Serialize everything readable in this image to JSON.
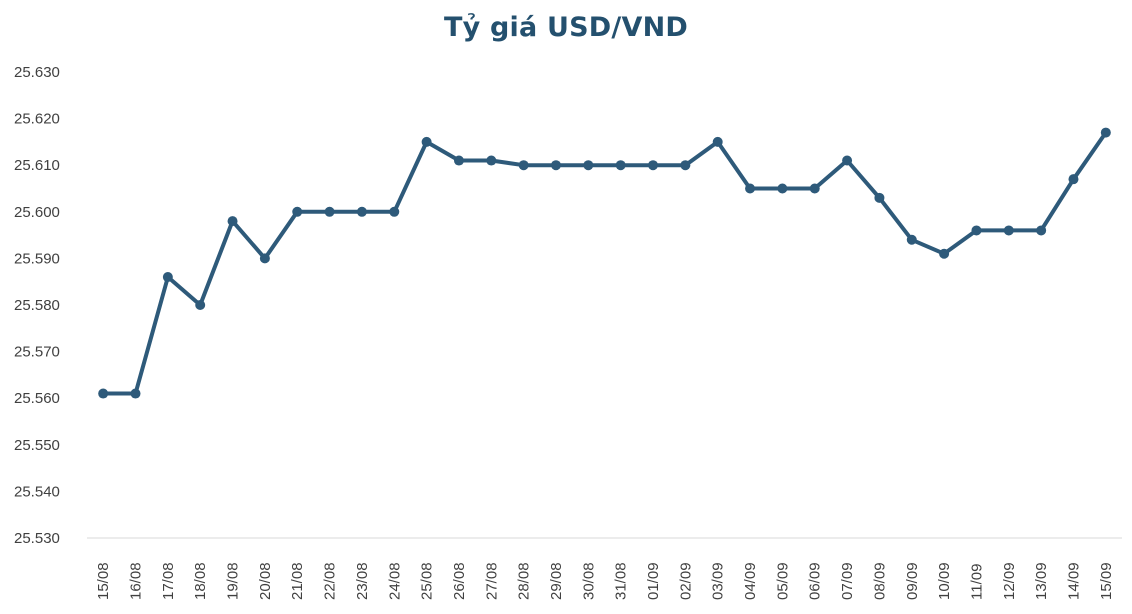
{
  "chart_data": {
    "type": "line",
    "title": "Tỷ giá USD/VND",
    "xlabel": "",
    "ylabel": "",
    "ylim": [
      25530,
      25630
    ],
    "yticks": [
      25530,
      25540,
      25550,
      25560,
      25570,
      25580,
      25590,
      25600,
      25610,
      25620,
      25630
    ],
    "ytick_labels": [
      "25.530",
      "25.540",
      "25.550",
      "25.560",
      "25.570",
      "25.580",
      "25.590",
      "25.600",
      "25.610",
      "25.620",
      "25.630"
    ],
    "grid": false,
    "legend": "none",
    "categories": [
      "15/08",
      "16/08",
      "17/08",
      "18/08",
      "19/08",
      "20/08",
      "21/08",
      "22/08",
      "23/08",
      "24/08",
      "25/08",
      "26/08",
      "27/08",
      "28/08",
      "29/08",
      "30/08",
      "31/08",
      "01/09",
      "02/09",
      "03/09",
      "04/09",
      "05/09",
      "06/09",
      "07/09",
      "08/09",
      "09/09",
      "10/09",
      "11/09",
      "12/09",
      "13/09",
      "14/09",
      "15/09"
    ],
    "series": [
      {
        "color": "#2e5a7a",
        "values": [
          25561,
          25561,
          25586,
          25580,
          25598,
          25590,
          25600,
          25600,
          25600,
          25600,
          25615,
          25611,
          25611,
          25610,
          25610,
          25610,
          25610,
          25610,
          25610,
          25615,
          25605,
          25605,
          25605,
          25611,
          25603,
          25594,
          25591,
          25596,
          25596,
          25596,
          25607,
          25617
        ]
      }
    ]
  }
}
